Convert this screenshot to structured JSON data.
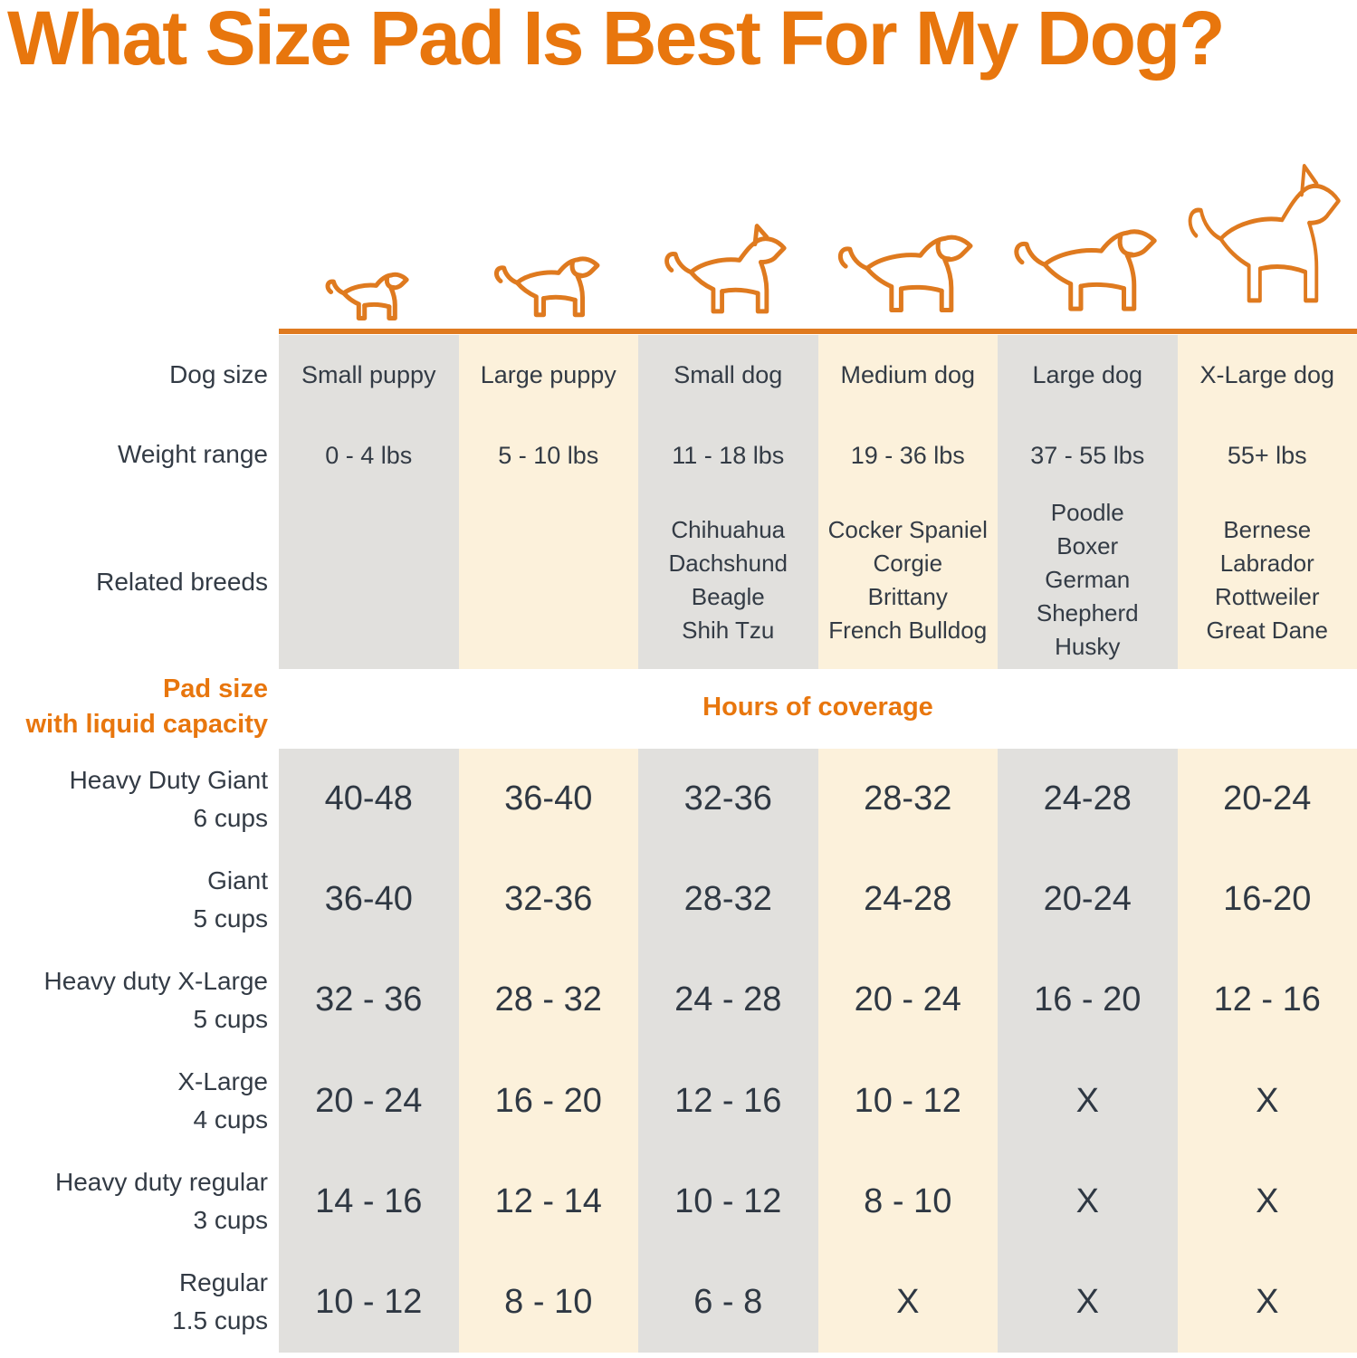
{
  "title": "What Size Pad Is Best For My Dog?",
  "row_labels": {
    "dog_size": "Dog size",
    "weight_range": "Weight range",
    "related_breeds": "Related breeds",
    "pad_size_line1": "Pad size",
    "pad_size_line2": "with liquid capacity",
    "hours_of_coverage": "Hours of coverage"
  },
  "columns": [
    {
      "dog_size": "Small puppy",
      "weight_range": "0 - 4 lbs",
      "breeds": []
    },
    {
      "dog_size": "Large puppy",
      "weight_range": "5 - 10 lbs",
      "breeds": []
    },
    {
      "dog_size": "Small dog",
      "weight_range": "11 - 18 lbs",
      "breeds": [
        "Chihuahua",
        "Dachshund",
        "Beagle",
        "Shih Tzu"
      ]
    },
    {
      "dog_size": "Medium dog",
      "weight_range": "19 - 36 lbs",
      "breeds": [
        "Cocker Spaniel",
        "Corgie",
        "Brittany",
        "French Bulldog"
      ]
    },
    {
      "dog_size": "Large dog",
      "weight_range": "37 - 55 lbs",
      "breeds": [
        "Poodle",
        "Boxer",
        "German Shepherd",
        "Husky"
      ]
    },
    {
      "dog_size": "X-Large dog",
      "weight_range": "55+ lbs",
      "breeds": [
        "Bernese",
        "Labrador",
        "Rottweiler",
        "Great Dane"
      ]
    }
  ],
  "pad_rows": [
    {
      "name": "Heavy Duty Giant",
      "capacity": "6 cups",
      "hours": [
        "40-48",
        "36-40",
        "32-36",
        "28-32",
        "24-28",
        "20-24"
      ]
    },
    {
      "name": "Giant",
      "capacity": "5 cups",
      "hours": [
        "36-40",
        "32-36",
        "28-32",
        "24-28",
        "20-24",
        "16-20"
      ]
    },
    {
      "name": "Heavy duty X-Large",
      "capacity": "5 cups",
      "hours": [
        "32 - 36",
        "28 - 32",
        "24 - 28",
        "20 - 24",
        "16 - 20",
        "12 - 16"
      ]
    },
    {
      "name": "X-Large",
      "capacity": "4 cups",
      "hours": [
        "20 - 24",
        "16 - 20",
        "12 - 16",
        "10 - 12",
        "X",
        "X"
      ]
    },
    {
      "name": "Heavy duty regular",
      "capacity": "3 cups",
      "hours": [
        "14 - 16",
        "12 - 14",
        "10 - 12",
        "8 - 10",
        "X",
        "X"
      ]
    },
    {
      "name": "Regular",
      "capacity": "1.5 cups",
      "hours": [
        "10 - 12",
        "8 - 10",
        "6 - 8",
        "X",
        "X",
        "X"
      ]
    }
  ],
  "colors": {
    "accent_orange": "#E8760D",
    "line_orange": "#CE7229",
    "dark_text": "#333B45",
    "column_gray": "#E1E0DD",
    "column_cream": "#FCF1DB"
  },
  "chart_data": {
    "type": "table",
    "title": "What Size Pad Is Best For My Dog?",
    "column_headers": [
      "Small puppy",
      "Large puppy",
      "Small dog",
      "Medium dog",
      "Large dog",
      "X-Large dog"
    ],
    "weight_ranges_lbs": [
      "0 - 4 lbs",
      "5 - 10 lbs",
      "11 - 18 lbs",
      "19 - 36 lbs",
      "37 - 55 lbs",
      "55+ lbs"
    ],
    "related_breeds": [
      [],
      [],
      [
        "Chihuahua",
        "Dachshund",
        "Beagle",
        "Shih Tzu"
      ],
      [
        "Cocker Spaniel",
        "Corgie",
        "Brittany",
        "French Bulldog"
      ],
      [
        "Poodle",
        "Boxer",
        "German Shepherd",
        "Husky"
      ],
      [
        "Bernese",
        "Labrador",
        "Rottweiler",
        "Great Dane"
      ]
    ],
    "value_unit": "Hours of coverage",
    "rows": [
      {
        "pad": "Heavy Duty Giant",
        "capacity": "6 cups",
        "values": [
          "40-48",
          "36-40",
          "32-36",
          "28-32",
          "24-28",
          "20-24"
        ]
      },
      {
        "pad": "Giant",
        "capacity": "5 cups",
        "values": [
          "36-40",
          "32-36",
          "28-32",
          "24-28",
          "20-24",
          "16-20"
        ]
      },
      {
        "pad": "Heavy duty X-Large",
        "capacity": "5 cups",
        "values": [
          "32 - 36",
          "28 - 32",
          "24 - 28",
          "20 - 24",
          "16 - 20",
          "12 - 16"
        ]
      },
      {
        "pad": "X-Large",
        "capacity": "4 cups",
        "values": [
          "20 - 24",
          "16 - 20",
          "12 - 16",
          "10 - 12",
          "X",
          "X"
        ]
      },
      {
        "pad": "Heavy duty regular",
        "capacity": "3 cups",
        "values": [
          "14 - 16",
          "12 - 14",
          "10 - 12",
          "8 - 10",
          "X",
          "X"
        ]
      },
      {
        "pad": "Regular",
        "capacity": "1.5 cups",
        "values": [
          "10 - 12",
          "8 - 10",
          "6 - 8",
          "X",
          "X",
          "X"
        ]
      }
    ]
  }
}
